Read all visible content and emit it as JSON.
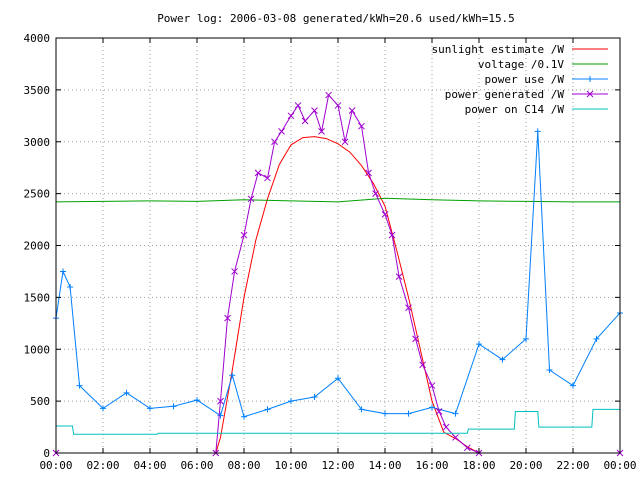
{
  "chart_data": {
    "type": "line",
    "title": "Power log: 2006-03-08 generated/kWh=20.6 used/kWh=15.5",
    "xlabel": "",
    "ylabel": "",
    "xlim": [
      0,
      24
    ],
    "ylim": [
      0,
      4000
    ],
    "x_ticks": [
      "00:00",
      "02:00",
      "04:00",
      "06:00",
      "08:00",
      "10:00",
      "12:00",
      "14:00",
      "16:00",
      "18:00",
      "20:00",
      "22:00",
      "00:00"
    ],
    "x_tick_values": [
      0,
      2,
      4,
      6,
      8,
      10,
      12,
      14,
      16,
      18,
      20,
      22,
      24
    ],
    "y_ticks": [
      "0",
      "500",
      "1000",
      "1500",
      "2000",
      "2500",
      "3000",
      "3500",
      "4000"
    ],
    "y_tick_values": [
      0,
      500,
      1000,
      1500,
      2000,
      2500,
      3000,
      3500,
      4000
    ],
    "grid": true,
    "legend_position": "top-right",
    "series": [
      {
        "name": "sunlight estimate /W",
        "color": "#ff0000",
        "marker": "none",
        "x": [
          0,
          6.8,
          7.0,
          7.5,
          8.0,
          8.5,
          9.0,
          9.5,
          10.0,
          10.5,
          11.0,
          11.5,
          12.0,
          12.5,
          13.0,
          13.5,
          14.0,
          14.5,
          15.0,
          15.5,
          16.0,
          16.5,
          17.0,
          17.5,
          18.0,
          24
        ],
        "y": [
          0,
          0,
          150,
          800,
          1500,
          2050,
          2450,
          2780,
          2970,
          3040,
          3050,
          3030,
          2980,
          2900,
          2770,
          2600,
          2380,
          1950,
          1500,
          1000,
          500,
          200,
          140,
          60,
          0,
          0
        ]
      },
      {
        "name": "voltage /0.1V",
        "color": "#00a000",
        "marker": "none",
        "x": [
          0,
          2,
          4,
          6,
          8,
          10,
          12,
          14,
          16,
          18,
          20,
          22,
          24
        ],
        "y": [
          2420,
          2425,
          2430,
          2425,
          2440,
          2430,
          2420,
          2455,
          2440,
          2430,
          2425,
          2420,
          2420
        ]
      },
      {
        "name": "power use /W",
        "color": "#0080ff",
        "marker": "+",
        "x": [
          0,
          0.3,
          0.6,
          1.0,
          2.0,
          3.0,
          4.0,
          5.0,
          6.0,
          7.0,
          7.5,
          8.0,
          9.0,
          10.0,
          11.0,
          12.0,
          13.0,
          14.0,
          15.0,
          16.0,
          17.0,
          18.0,
          19.0,
          20.0,
          20.5,
          21.0,
          22.0,
          23.0,
          24.0
        ],
        "y": [
          1300,
          1750,
          1600,
          650,
          430,
          580,
          430,
          450,
          510,
          360,
          750,
          350,
          420,
          500,
          540,
          720,
          420,
          380,
          380,
          440,
          380,
          1050,
          900,
          1100,
          3100,
          800,
          650,
          1100,
          1350
        ]
      },
      {
        "name": "power generated /W",
        "color": "#a000d0",
        "marker": "x",
        "x": [
          0,
          6.8,
          7.0,
          7.3,
          7.6,
          8.0,
          8.3,
          8.6,
          9.0,
          9.3,
          9.6,
          10.0,
          10.3,
          10.6,
          11.0,
          11.3,
          11.6,
          12.0,
          12.3,
          12.6,
          13.0,
          13.3,
          13.6,
          14.0,
          14.3,
          14.6,
          15.0,
          15.3,
          15.6,
          16.0,
          16.3,
          16.6,
          17.0,
          17.5,
          18.0,
          24
        ],
        "y": [
          0,
          0,
          500,
          1300,
          1750,
          2100,
          2450,
          2700,
          2650,
          3000,
          3100,
          3250,
          3350,
          3200,
          3300,
          3100,
          3450,
          3350,
          3000,
          3300,
          3150,
          2700,
          2500,
          2300,
          2100,
          1700,
          1400,
          1100,
          850,
          650,
          400,
          250,
          150,
          50,
          0,
          0
        ]
      },
      {
        "name": "power on C14 /W",
        "color": "#00c0c0",
        "marker": "none",
        "x": [
          0,
          0.7,
          0.75,
          4.3,
          4.35,
          17.5,
          17.55,
          19.5,
          19.55,
          20.5,
          20.55,
          22.8,
          22.85,
          24
        ],
        "y": [
          260,
          260,
          180,
          180,
          190,
          190,
          230,
          230,
          400,
          400,
          250,
          250,
          420,
          420
        ]
      }
    ]
  }
}
